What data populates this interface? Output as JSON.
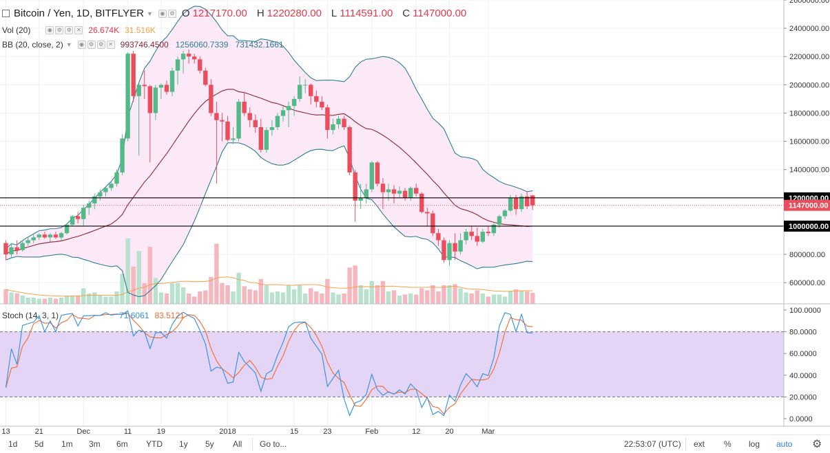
{
  "header": {
    "symbol": "Bitcoin / Yen, 1D, BITFLYER",
    "o_label": "O",
    "o_val": "1217170.00",
    "h_label": "H",
    "h_val": "1220280.00",
    "l_label": "L",
    "l_val": "1114591.00",
    "c_label": "C",
    "c_val": "1147000.00"
  },
  "vol_legend": {
    "label": "Vol (20)",
    "v1": "26.674K",
    "v2": "31.516K"
  },
  "bb_legend": {
    "label": "BB (20, close, 2)",
    "basis": "993746.4500",
    "upper": "1256060.7339",
    "lower": "731432.1661"
  },
  "stoch_legend": {
    "label": "Stoch (14, 3, 1)",
    "k": "71.6061",
    "d": "83.5121"
  },
  "price_axis": [
    "2600000.00",
    "2400000.00",
    "2200000.00",
    "2000000.00",
    "1800000.00",
    "1600000.00",
    "1400000.00",
    "1200000.00",
    "1000000.00",
    "800000.00",
    "600000.00"
  ],
  "price_tags": {
    "level_high": "1200000.00",
    "last": "1147000.00",
    "level_low": "1000000.00"
  },
  "stoch_axis": [
    "100.0000",
    "80.0000",
    "60.0000",
    "40.0000",
    "20.0000",
    "0.0000"
  ],
  "time_axis": [
    {
      "label": "13",
      "i": 0
    },
    {
      "label": "21",
      "i": 6
    },
    {
      "label": "Dec",
      "i": 14
    },
    {
      "label": "11",
      "i": 22
    },
    {
      "label": "19",
      "i": 28
    },
    {
      "label": "2018",
      "i": 40
    },
    {
      "label": "15",
      "i": 52
    },
    {
      "label": "23",
      "i": 58
    },
    {
      "label": "Feb",
      "i": 66
    },
    {
      "label": "12",
      "i": 74
    },
    {
      "label": "20",
      "i": 80
    },
    {
      "label": "Mar",
      "i": 87
    }
  ],
  "bottom_bar": {
    "ranges": [
      "1d",
      "5d",
      "1m",
      "3m",
      "6m",
      "YTD",
      "1y",
      "5y",
      "All"
    ],
    "goto": "Go to...",
    "clock": "22:53:07 (UTC)",
    "ext": "ext",
    "pct": "%",
    "log": "log",
    "auto": "auto"
  },
  "colors": {
    "up": "#53b987",
    "down": "#eb4d5c",
    "bb_upper": "#2b7d93",
    "bb_basis": "#8b2330",
    "bb_fill": "#fce9f7",
    "vol_ma": "#f5a04a",
    "stoch_k": "#2f8fe0",
    "stoch_d": "#f26a2b",
    "stoch_band": "#e4d4f5"
  },
  "chart_data": {
    "type": "candlestick",
    "symbol": "Bitcoin / Yen",
    "interval": "1D",
    "exchange": "BITFLYER",
    "ylim": [
      450000,
      2600000
    ],
    "horizontal_levels": [
      1200000,
      1000000
    ],
    "last_price": 1147000,
    "ohlc": [
      [
        880000,
        900000,
        760000,
        800000
      ],
      [
        800000,
        880000,
        770000,
        850000
      ],
      [
        850000,
        900000,
        800000,
        830000
      ],
      [
        830000,
        900000,
        820000,
        880000
      ],
      [
        880000,
        920000,
        860000,
        900000
      ],
      [
        900000,
        940000,
        880000,
        920000
      ],
      [
        920000,
        950000,
        900000,
        940000
      ],
      [
        940000,
        960000,
        910000,
        920000
      ],
      [
        920000,
        950000,
        890000,
        940000
      ],
      [
        940000,
        960000,
        910000,
        920000
      ],
      [
        920000,
        960000,
        900000,
        950000
      ],
      [
        950000,
        1020000,
        940000,
        1010000
      ],
      [
        1010000,
        1080000,
        1000000,
        1070000
      ],
      [
        1070000,
        1100000,
        1020000,
        1050000
      ],
      [
        1050000,
        1150000,
        1000000,
        1130000
      ],
      [
        1130000,
        1180000,
        1080000,
        1160000
      ],
      [
        1160000,
        1230000,
        1120000,
        1210000
      ],
      [
        1210000,
        1260000,
        1180000,
        1240000
      ],
      [
        1240000,
        1280000,
        1210000,
        1270000
      ],
      [
        1270000,
        1320000,
        1250000,
        1300000
      ],
      [
        1300000,
        1400000,
        1280000,
        1380000
      ],
      [
        1380000,
        1650000,
        1360000,
        1620000
      ],
      [
        1620000,
        2230000,
        1600000,
        2220000
      ],
      [
        2220000,
        2240000,
        1880000,
        1920000
      ],
      [
        1920000,
        2010000,
        1500000,
        2000000
      ],
      [
        2000000,
        2100000,
        1900000,
        1990000
      ],
      [
        1990000,
        2000000,
        1450000,
        1800000
      ],
      [
        1800000,
        2000000,
        1750000,
        1980000
      ],
      [
        1980000,
        2010000,
        1900000,
        2000000
      ],
      [
        2000000,
        2030000,
        1930000,
        1950000
      ],
      [
        1950000,
        2120000,
        1920000,
        2100000
      ],
      [
        2100000,
        2200000,
        2000000,
        2180000
      ],
      [
        2180000,
        2240000,
        2080000,
        2220000
      ],
      [
        2220000,
        2250000,
        2150000,
        2200000
      ],
      [
        2200000,
        2220000,
        2150000,
        2180000
      ],
      [
        2180000,
        2200000,
        2080000,
        2100000
      ],
      [
        2100000,
        2120000,
        1990000,
        2000000
      ],
      [
        2000000,
        2040000,
        1780000,
        1800000
      ],
      [
        1800000,
        1880000,
        1300000,
        1750000
      ],
      [
        1750000,
        1800000,
        1600000,
        1740000
      ],
      [
        1740000,
        1780000,
        1600000,
        1610000
      ],
      [
        1610000,
        1700000,
        1580000,
        1620000
      ],
      [
        1620000,
        1900000,
        1600000,
        1880000
      ],
      [
        1880000,
        1950000,
        1780000,
        1800000
      ],
      [
        1800000,
        1840000,
        1700000,
        1750000
      ],
      [
        1750000,
        1790000,
        1660000,
        1700000
      ],
      [
        1700000,
        1760000,
        1520000,
        1540000
      ],
      [
        1540000,
        1700000,
        1520000,
        1680000
      ],
      [
        1680000,
        1750000,
        1640000,
        1700000
      ],
      [
        1700000,
        1800000,
        1680000,
        1780000
      ],
      [
        1780000,
        1850000,
        1740000,
        1820000
      ],
      [
        1820000,
        1880000,
        1700000,
        1850000
      ],
      [
        1850000,
        1920000,
        1780000,
        1900000
      ],
      [
        1900000,
        2060000,
        1880000,
        2000000
      ],
      [
        2000000,
        2040000,
        1940000,
        2000000
      ],
      [
        2000000,
        2010000,
        1860000,
        1920000
      ],
      [
        1920000,
        1960000,
        1840000,
        1880000
      ],
      [
        1880000,
        1920000,
        1820000,
        1840000
      ],
      [
        1840000,
        1860000,
        1620000,
        1680000
      ],
      [
        1680000,
        1760000,
        1650000,
        1720000
      ],
      [
        1720000,
        1780000,
        1690000,
        1760000
      ],
      [
        1760000,
        1780000,
        1680000,
        1700000
      ],
      [
        1700000,
        1710000,
        1360000,
        1380000
      ],
      [
        1380000,
        1400000,
        1030000,
        1180000
      ],
      [
        1180000,
        1300000,
        1120000,
        1200000
      ],
      [
        1200000,
        1300000,
        1160000,
        1260000
      ],
      [
        1260000,
        1460000,
        1240000,
        1450000
      ],
      [
        1450000,
        1460000,
        1280000,
        1300000
      ],
      [
        1300000,
        1340000,
        1120000,
        1240000
      ],
      [
        1240000,
        1300000,
        1180000,
        1260000
      ],
      [
        1260000,
        1290000,
        1160000,
        1230000
      ],
      [
        1230000,
        1280000,
        1200000,
        1250000
      ],
      [
        1250000,
        1270000,
        1180000,
        1200000
      ],
      [
        1200000,
        1280000,
        1180000,
        1270000
      ],
      [
        1270000,
        1300000,
        1210000,
        1230000
      ],
      [
        1230000,
        1240000,
        1090000,
        1100000
      ],
      [
        1100000,
        1130000,
        1000000,
        1090000
      ],
      [
        1090000,
        1110000,
        930000,
        950000
      ],
      [
        950000,
        980000,
        860000,
        900000
      ],
      [
        900000,
        920000,
        740000,
        760000
      ],
      [
        760000,
        900000,
        720000,
        880000
      ],
      [
        880000,
        950000,
        760000,
        820000
      ],
      [
        820000,
        950000,
        800000,
        900000
      ],
      [
        900000,
        980000,
        870000,
        960000
      ],
      [
        960000,
        1000000,
        900000,
        930000
      ],
      [
        930000,
        990000,
        860000,
        890000
      ],
      [
        890000,
        980000,
        880000,
        960000
      ],
      [
        960000,
        1000000,
        930000,
        950000
      ],
      [
        950000,
        1020000,
        930000,
        1010000
      ],
      [
        1010000,
        1080000,
        990000,
        1070000
      ],
      [
        1070000,
        1120000,
        1050000,
        1110000
      ],
      [
        1110000,
        1220000,
        1100000,
        1200000
      ],
      [
        1200000,
        1220000,
        1080000,
        1120000
      ],
      [
        1120000,
        1230000,
        1100000,
        1210000
      ],
      [
        1210000,
        1240000,
        1120000,
        1140000
      ],
      [
        1217170,
        1220280,
        1114591,
        1147000
      ]
    ]
  }
}
